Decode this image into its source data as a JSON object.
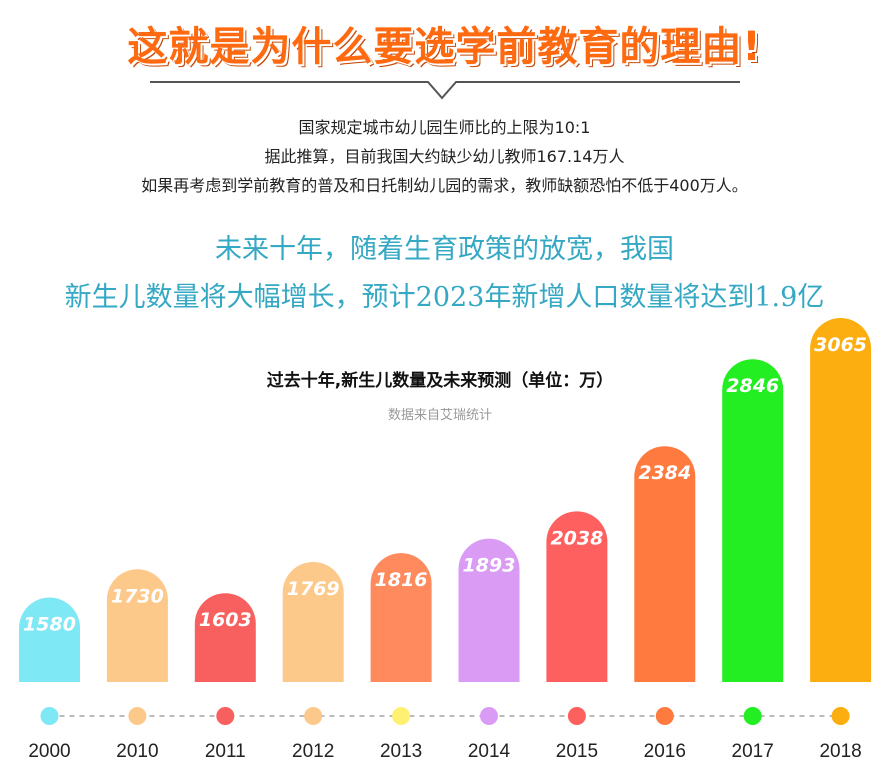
{
  "header": {
    "headline": "这就是为什么要选学前教育的理由!"
  },
  "intro": {
    "lines": [
      "国家规定城市幼儿园生师比的上限为10:1",
      "据此推算，目前我国大约缺少幼儿教师167.14万人",
      "如果再考虑到学前教育的普及和日托制幼儿园的需求，教师缺额恐怕不低于400万人。"
    ]
  },
  "highlight": {
    "lines": [
      "未来十年，随着生育政策的放宽，我国",
      "新生儿数量将大幅增长，预计2023年新增人口数量将达到1.9亿"
    ]
  },
  "colors": {
    "headline": "#ff6a10",
    "highlight": "#35a8c4",
    "timeline": "#bbbbbb"
  },
  "chart_data": {
    "type": "bar",
    "title": "过去十年,新生儿数量及未来预测（单位：万）",
    "source": "数据来自艾瑞统计",
    "categories": [
      "2000",
      "2010",
      "2011",
      "2012",
      "2013",
      "2014",
      "2015",
      "2016",
      "2017",
      "2018"
    ],
    "values": [
      1580,
      1730,
      1603,
      1769,
      1816,
      1893,
      2038,
      2384,
      2846,
      3065
    ],
    "bar_colors": [
      "#7ee8f4",
      "#fcc98a",
      "#f86060",
      "#fcc98a",
      "#fe8a5e",
      "#d99bf4",
      "#fe6060",
      "#fe7a3e",
      "#22ee22",
      "#fcae10"
    ],
    "dot_colors": [
      "#7ee8f4",
      "#fcc98a",
      "#f86060",
      "#fcc98a",
      "#fef070",
      "#d99bf4",
      "#fe6060",
      "#fe7a3e",
      "#22ee22",
      "#fcae10"
    ],
    "grid": false,
    "legend": "none"
  }
}
